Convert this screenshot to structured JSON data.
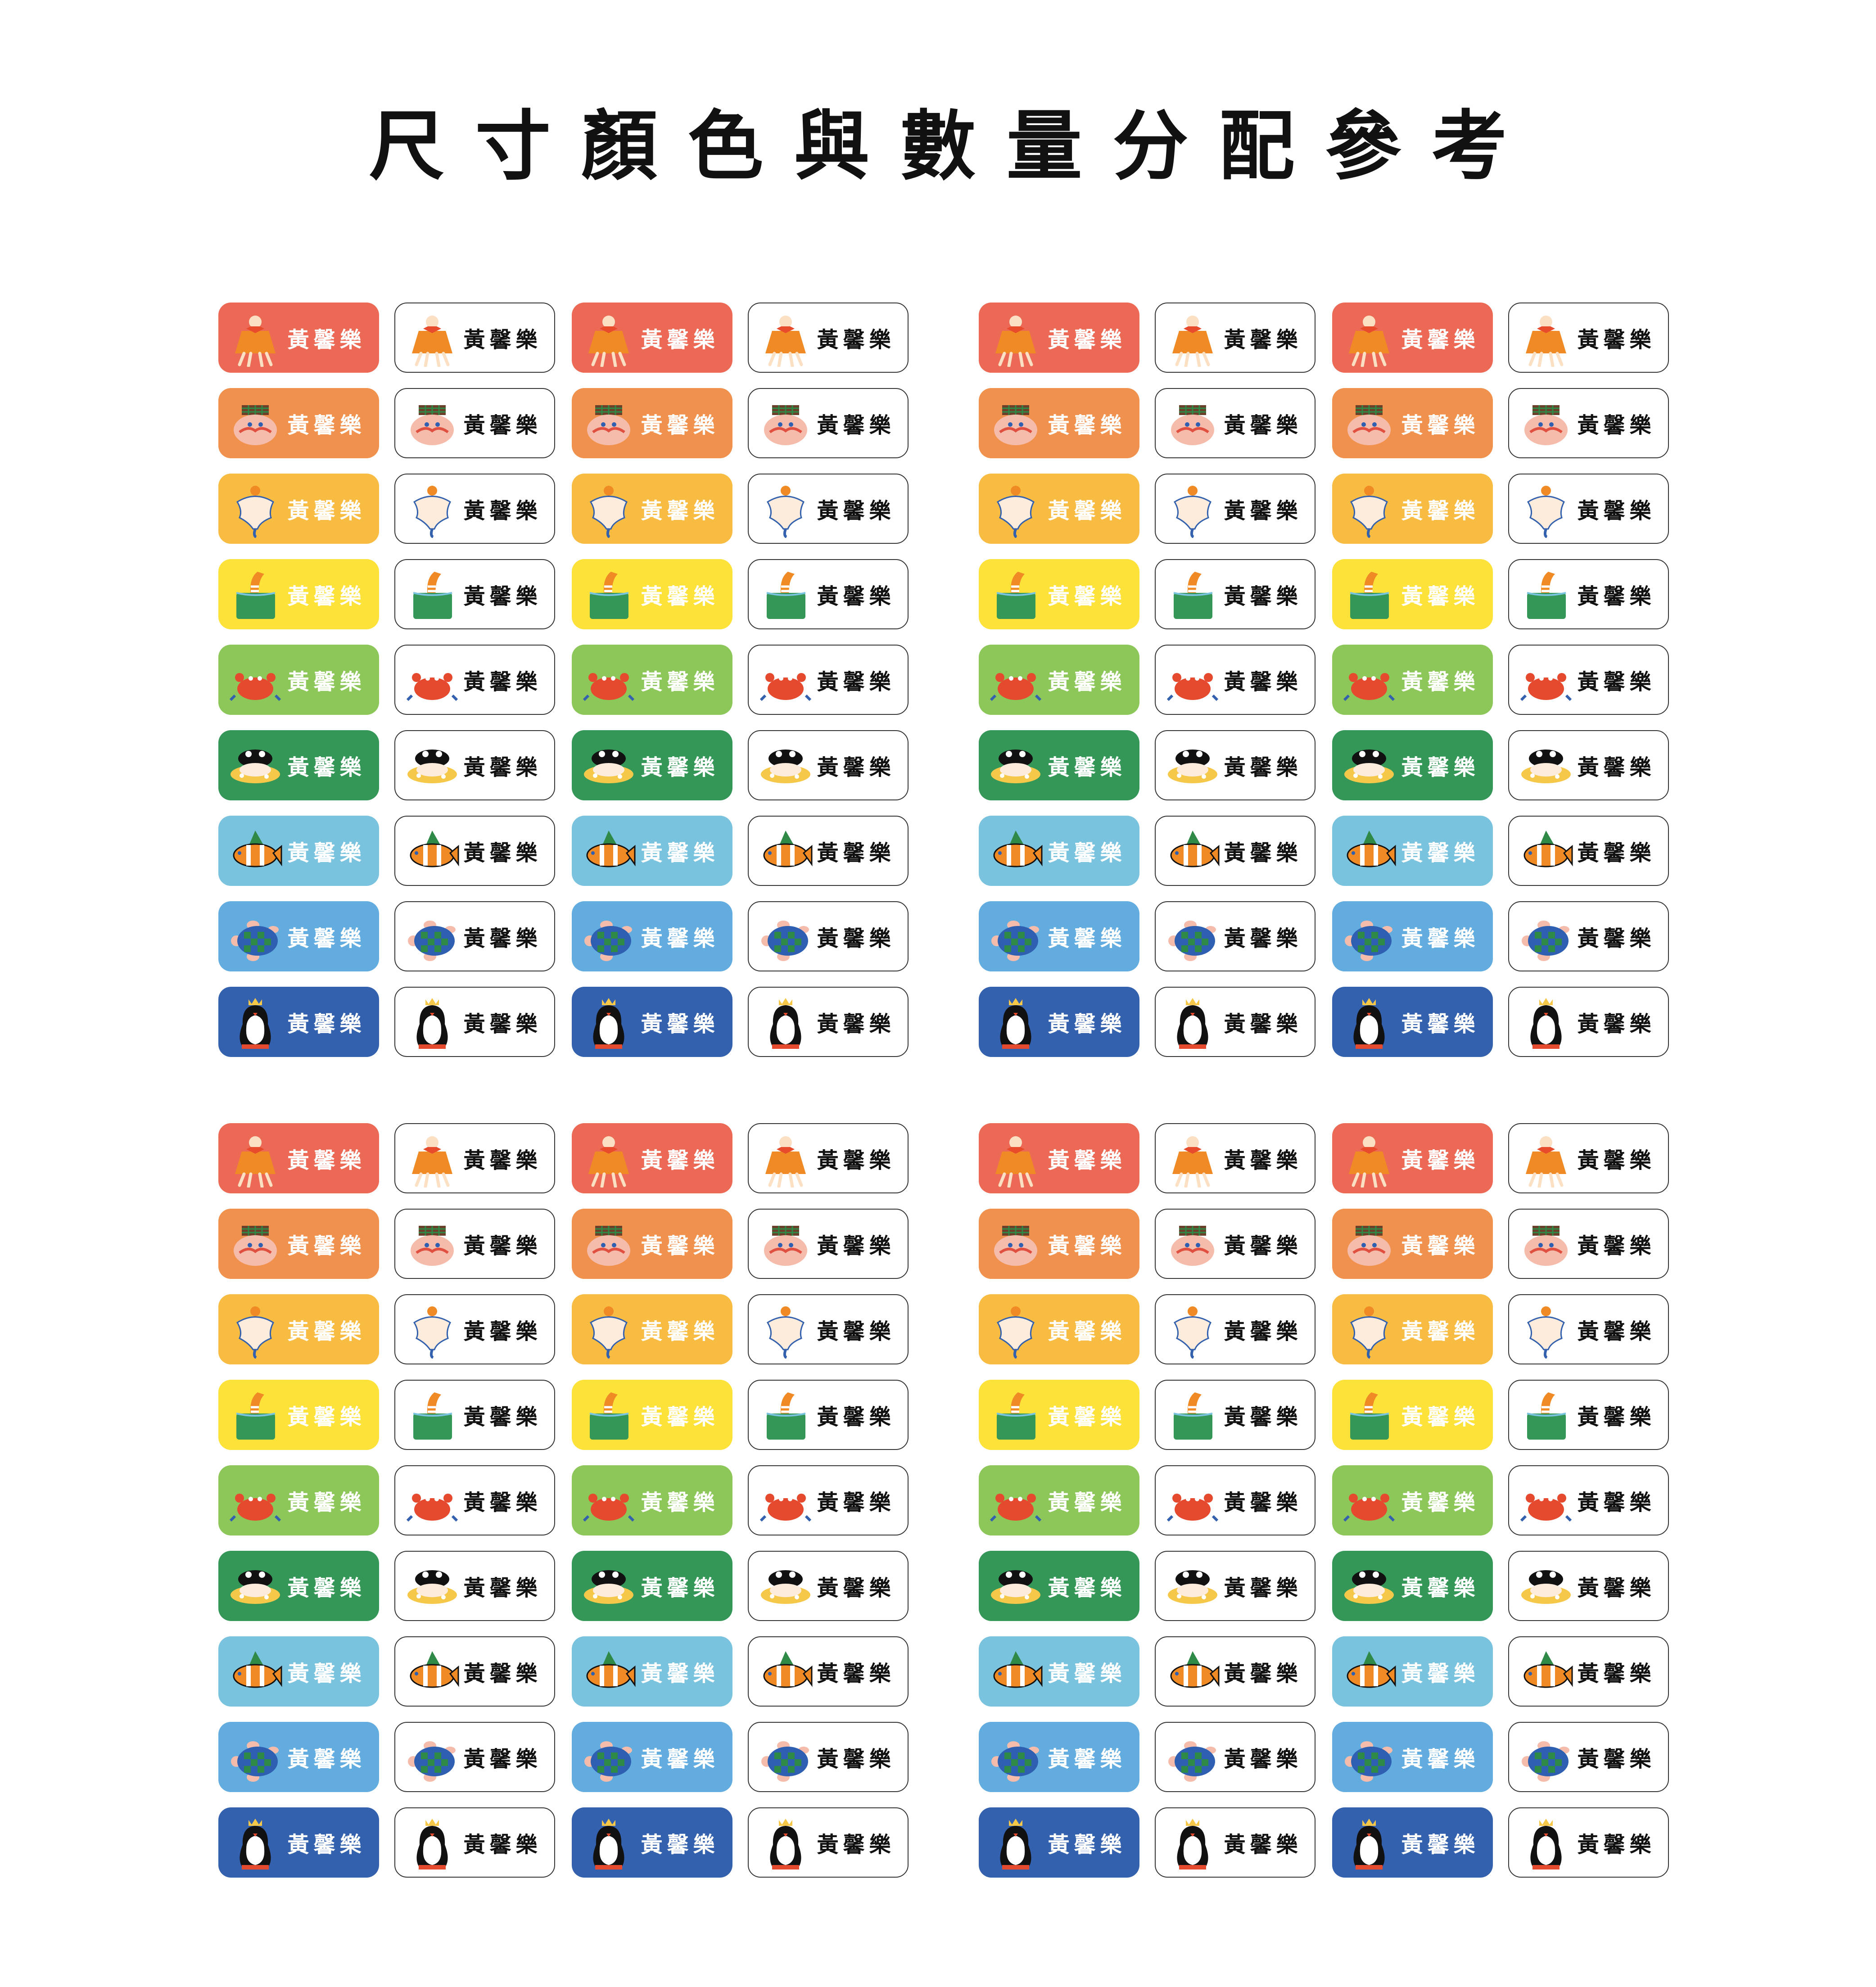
{
  "title": "尺寸顏色與數量分配參考",
  "name": "黃馨樂",
  "rows": [
    {
      "color": "#EC6A55",
      "icon": "jester-icon"
    },
    {
      "color": "#F0914D",
      "icon": "mustache-face-icon"
    },
    {
      "color": "#F8BC42",
      "icon": "ghost-icon"
    },
    {
      "color": "#FDE23A",
      "icon": "eel-in-book-icon"
    },
    {
      "color": "#8DC75A",
      "icon": "crab-icon"
    },
    {
      "color": "#349758",
      "icon": "frog-float-icon"
    },
    {
      "color": "#7AC3DE",
      "icon": "clownfish-icon"
    },
    {
      "color": "#62ACDF",
      "icon": "turtle-icon"
    },
    {
      "color": "#3461AE",
      "icon": "penguin-icon"
    }
  ],
  "column_styles": [
    "colored",
    "white",
    "colored",
    "white"
  ],
  "sheets": 4
}
